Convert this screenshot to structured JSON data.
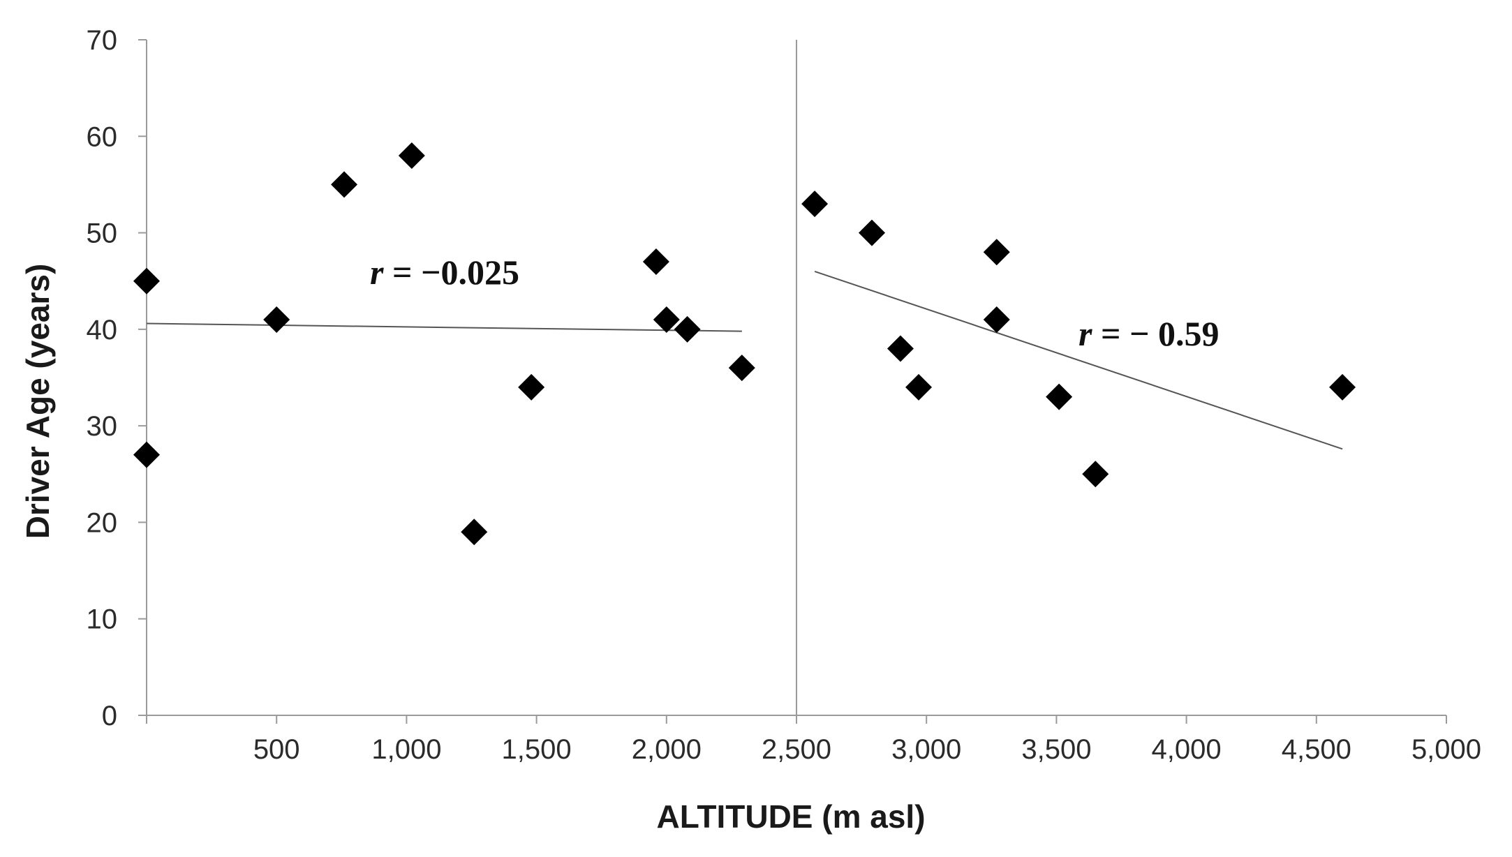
{
  "chart_data": {
    "type": "scatter",
    "xlabel": "ALTITUDE (m asl)",
    "ylabel": "Driver Age (years)",
    "xlim": [
      0,
      5000
    ],
    "ylim": [
      0,
      70
    ],
    "x_ticks": [
      500,
      1000,
      1500,
      2000,
      2500,
      3000,
      3500,
      4000,
      4500,
      5000
    ],
    "x_tick_labels": [
      "500",
      "1,000",
      "1,500",
      "2,000",
      "2,500",
      "3,000",
      "3,500",
      "4,000",
      "4,500",
      "5,000"
    ],
    "y_ticks": [
      0,
      10,
      20,
      30,
      40,
      50,
      60,
      70
    ],
    "y_tick_labels": [
      "0",
      "10",
      "20",
      "30",
      "40",
      "50",
      "60",
      "70"
    ],
    "grid": false,
    "divider_x": 2500,
    "marker": "diamond",
    "marker_color": "#000000",
    "series": [
      {
        "points": [
          {
            "x": 0,
            "y": 45
          },
          {
            "x": 0,
            "y": 27
          },
          {
            "x": 500,
            "y": 41
          },
          {
            "x": 760,
            "y": 55
          },
          {
            "x": 1020,
            "y": 58
          },
          {
            "x": 1260,
            "y": 19
          },
          {
            "x": 1480,
            "y": 34
          },
          {
            "x": 1960,
            "y": 47
          },
          {
            "x": 2000,
            "y": 41
          },
          {
            "x": 2080,
            "y": 40
          },
          {
            "x": 2290,
            "y": 36
          }
        ],
        "trendline": {
          "x": [
            0,
            2290
          ],
          "y": [
            40.6,
            39.8
          ]
        }
      },
      {
        "points": [
          {
            "x": 2570,
            "y": 53
          },
          {
            "x": 2790,
            "y": 50
          },
          {
            "x": 2900,
            "y": 38
          },
          {
            "x": 2970,
            "y": 34
          },
          {
            "x": 3270,
            "y": 48
          },
          {
            "x": 3270,
            "y": 41
          },
          {
            "x": 3510,
            "y": 33
          },
          {
            "x": 3650,
            "y": 25
          },
          {
            "x": 4600,
            "y": 34
          }
        ],
        "trendline": {
          "x": [
            2570,
            4600
          ],
          "y": [
            46,
            27.6
          ]
        }
      }
    ],
    "annotations": [
      {
        "symbol": "r",
        "rest": " = −0.025"
      },
      {
        "symbol": "r",
        "rest": " = − 0.59"
      }
    ]
  }
}
